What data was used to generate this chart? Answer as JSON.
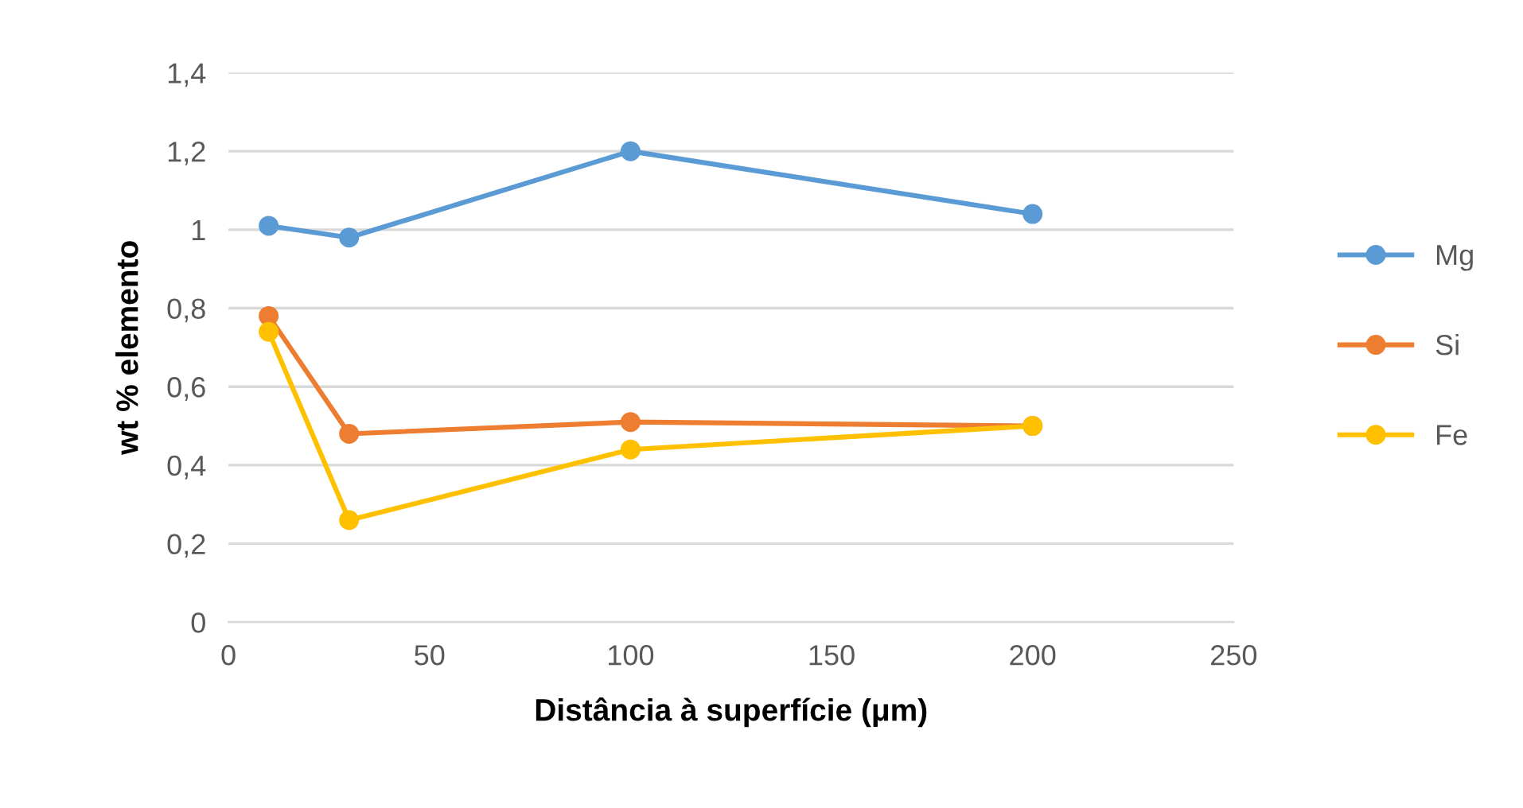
{
  "chart_data": {
    "type": "line",
    "xlabel": "Distância à superfície (μm)",
    "ylabel": "wt % elemento",
    "x": [
      10,
      30,
      100,
      200
    ],
    "series": [
      {
        "name": "Mg",
        "color": "#5b9bd5",
        "values": [
          1.01,
          0.98,
          1.2,
          1.04
        ]
      },
      {
        "name": "Si",
        "color": "#ed7d31",
        "values": [
          0.78,
          0.48,
          0.51,
          0.5
        ]
      },
      {
        "name": "Fe",
        "color": "#ffc000",
        "values": [
          0.74,
          0.26,
          0.44,
          0.5
        ]
      }
    ],
    "xlim": [
      0,
      250
    ],
    "xticks": [
      0,
      50,
      100,
      150,
      200,
      250
    ],
    "ylim": [
      0,
      1.4
    ],
    "yticks": [
      0,
      {
        "value": 0.2,
        "label": "0,2"
      },
      {
        "value": 0.4,
        "label": "0,4"
      },
      {
        "value": 0.6,
        "label": "0,6"
      },
      {
        "value": 0.8,
        "label": "0,8"
      },
      1,
      {
        "value": 1.2,
        "label": "1,2"
      },
      {
        "value": 1.4,
        "label": "1,4"
      }
    ],
    "grid": "y",
    "legend": "right",
    "marker": "circle",
    "line_style": "solid"
  }
}
